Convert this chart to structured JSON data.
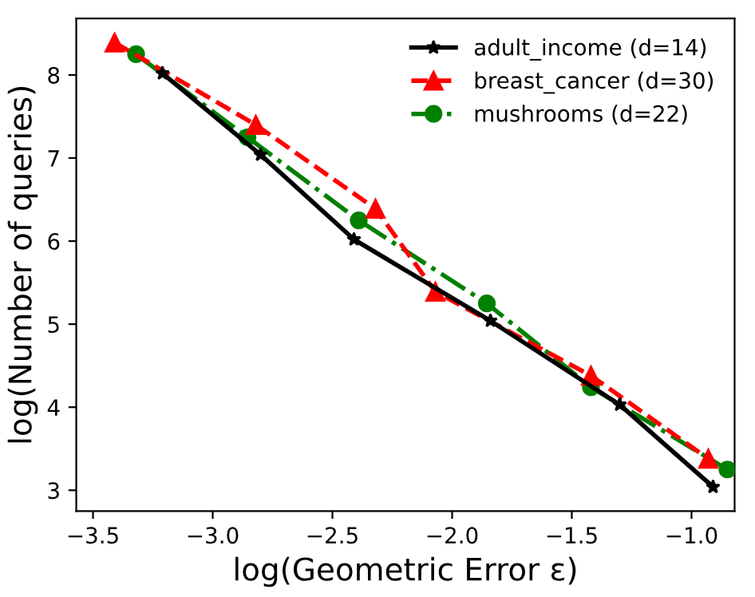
{
  "chart_data": {
    "type": "line",
    "xlabel": "log(Geometric Error ε)",
    "ylabel": "log(Number of queries)",
    "xlim": [
      -3.57,
      -0.82
    ],
    "ylim": [
      2.75,
      8.68
    ],
    "xticks": [
      {
        "value": -3.5,
        "label": "−3.5"
      },
      {
        "value": -3.0,
        "label": "−3.0"
      },
      {
        "value": -2.5,
        "label": "−2.5"
      },
      {
        "value": -2.0,
        "label": "−2.0"
      },
      {
        "value": -1.5,
        "label": "−1.5"
      },
      {
        "value": -1.0,
        "label": "−1.0"
      }
    ],
    "yticks": [
      3,
      4,
      5,
      6,
      7,
      8
    ],
    "grid": false,
    "legend": "top right",
    "series": [
      {
        "name": "adult_income (d=14)",
        "color": "#000000",
        "marker": "star",
        "line_style": "solid",
        "x": [
          -3.21,
          -2.8,
          -2.41,
          -1.84,
          -1.3,
          -0.91
        ],
        "values": [
          8.02,
          7.04,
          6.02,
          5.04,
          4.03,
          3.04
        ]
      },
      {
        "name": "breast_cancer (d=30)",
        "color": "#ff0000",
        "marker": "triangle",
        "line_style": "dashed",
        "x": [
          -3.41,
          -2.82,
          -2.32,
          -2.07,
          -1.42,
          -0.93
        ],
        "values": [
          8.39,
          7.4,
          6.39,
          5.39,
          4.38,
          3.38
        ]
      },
      {
        "name": "mushrooms (d=22)",
        "color": "#008000",
        "marker": "circle",
        "line_style": "dashdot",
        "x": [
          -3.32,
          -2.855,
          -2.39,
          -1.855,
          -1.42,
          -0.85
        ],
        "values": [
          8.25,
          7.25,
          6.25,
          5.25,
          4.24,
          3.25
        ]
      }
    ]
  }
}
